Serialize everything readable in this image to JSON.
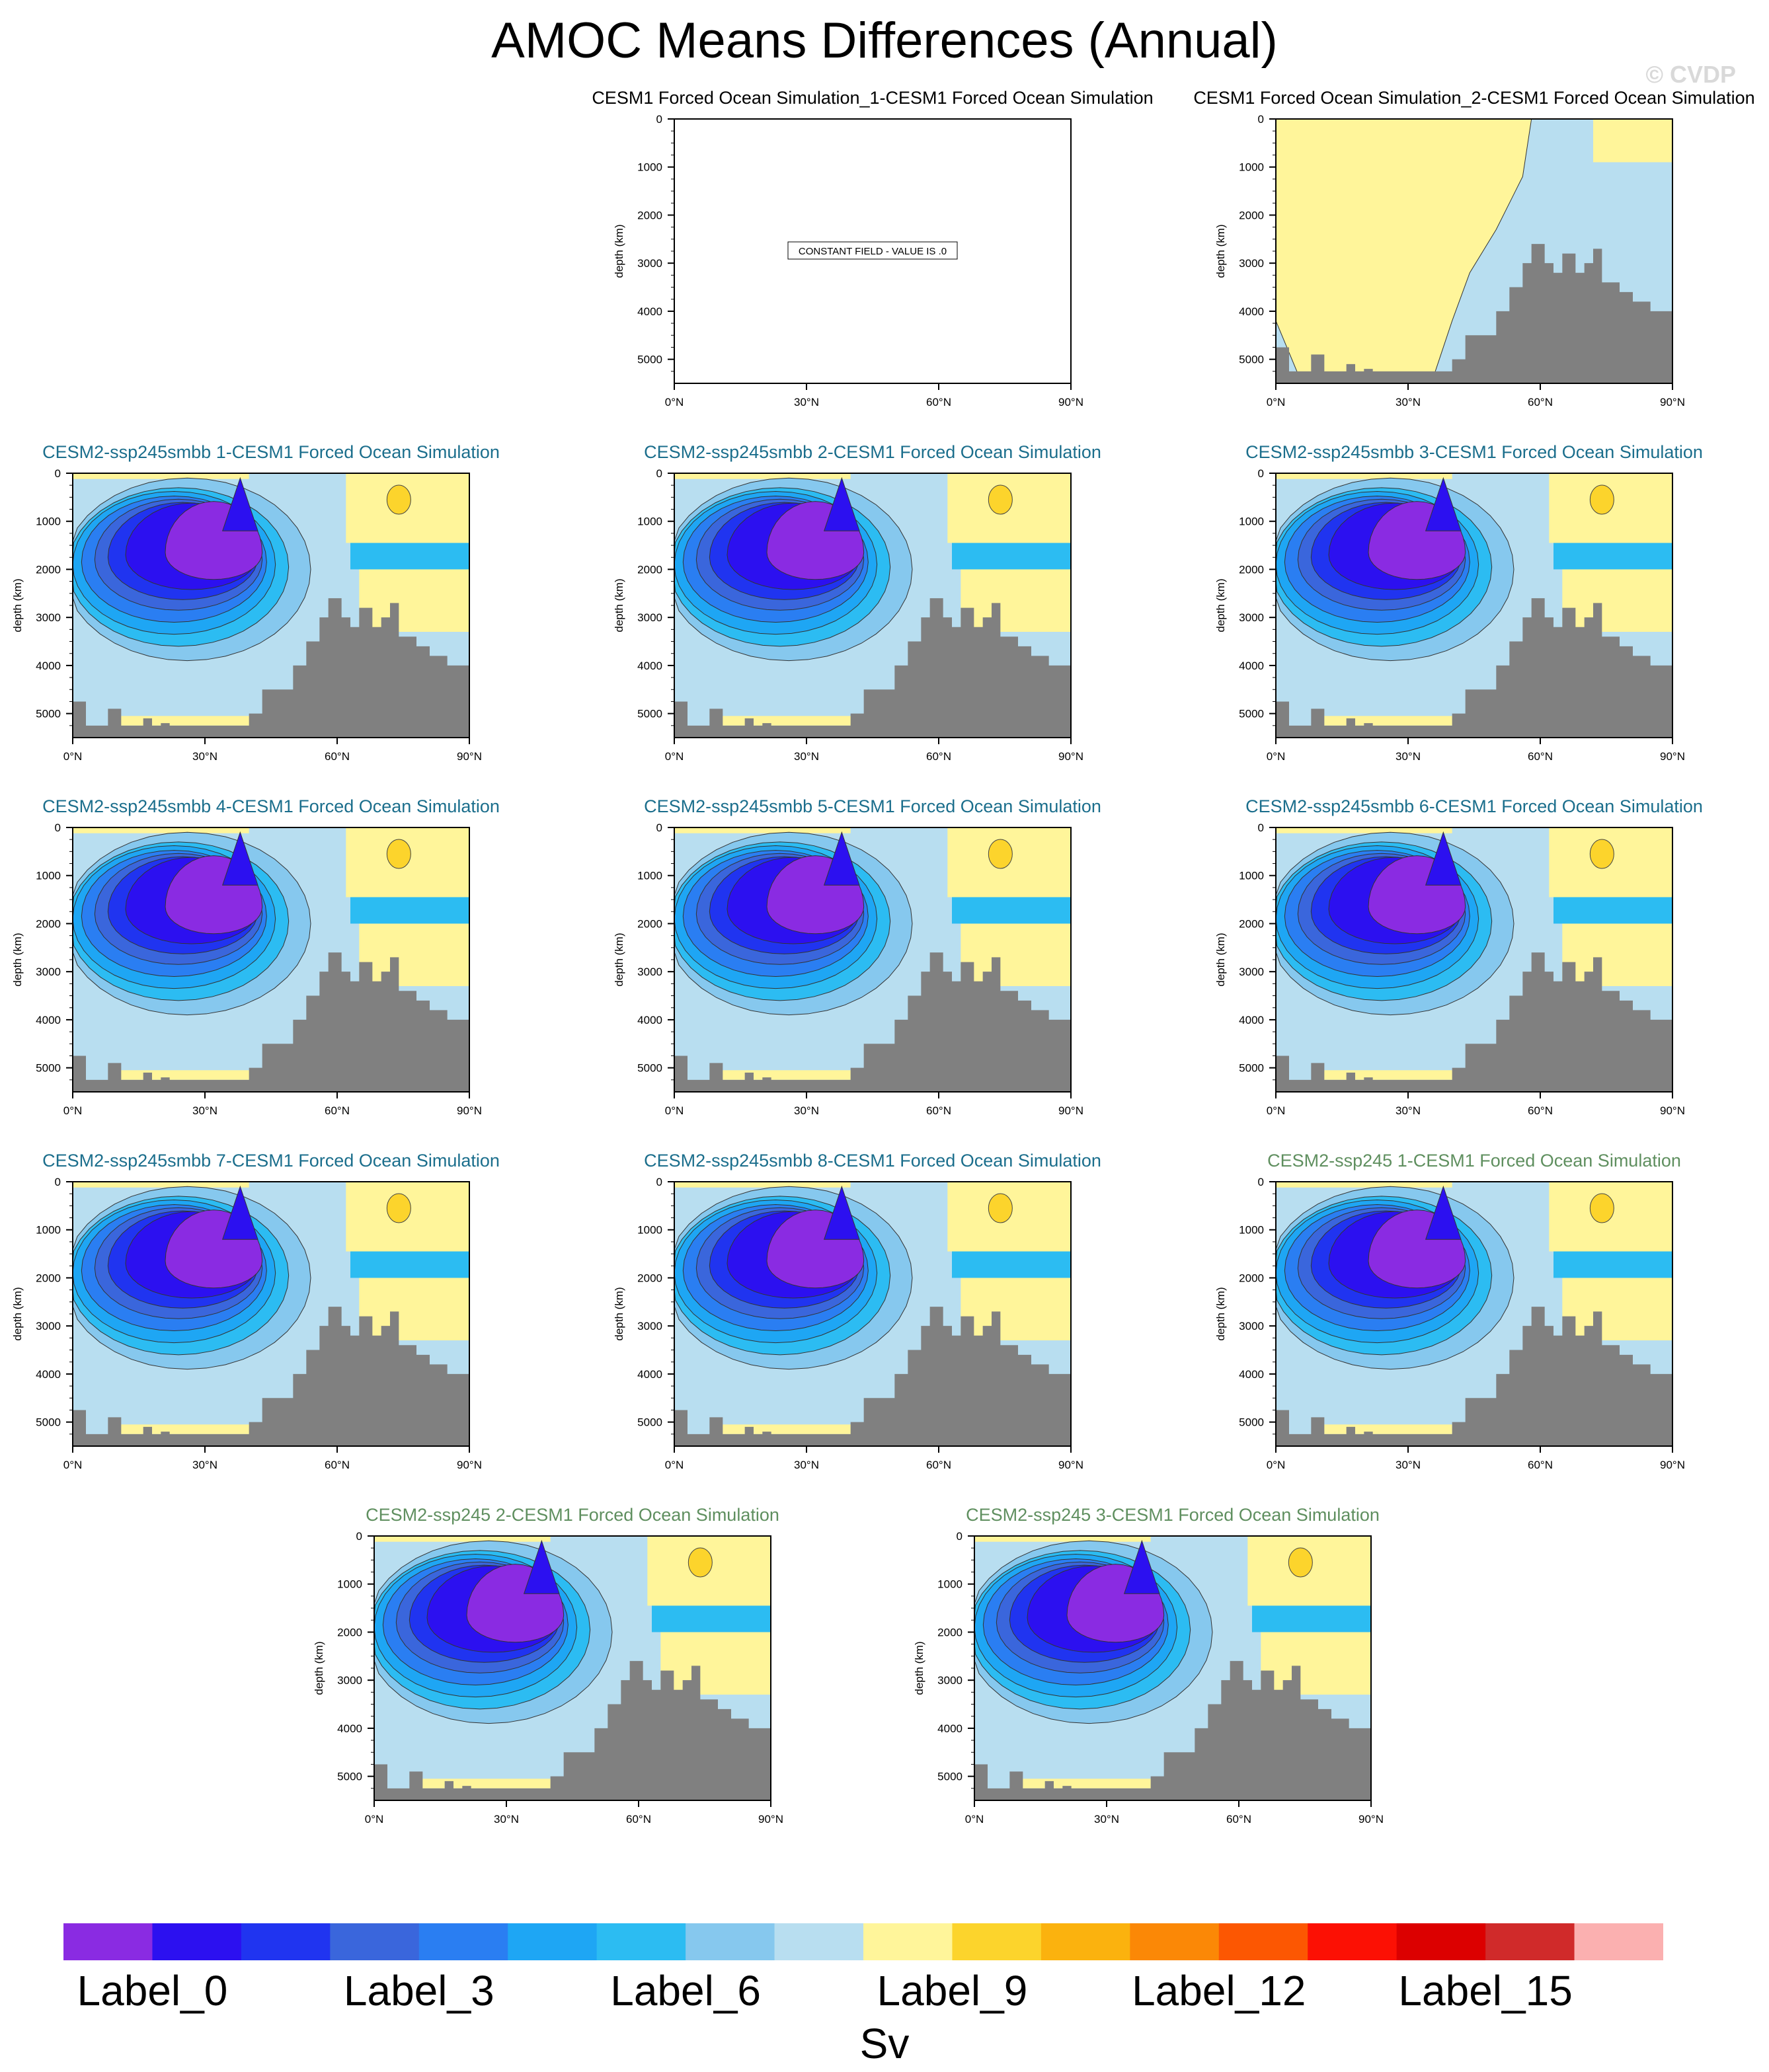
{
  "title": "AMOC Means Differences (Annual)",
  "watermark": "© CVDP",
  "colors": {
    "land": "#808080",
    "titles_cesm1": "#000000",
    "titles_smbb": "#1b6e8c",
    "titles_ssp245": "#5f8f5f"
  },
  "chart_data": [
    {
      "type": "heatmap",
      "title": "CESM1 Forced Ocean Simulation_1-CESM1 Forced Ocean Simulation",
      "title_color": "#000000",
      "ylabel": "depth (km)",
      "xticks": [
        "0°N",
        "30°N",
        "60°N",
        "90°N"
      ],
      "yticks": [
        "0",
        "1000",
        "2000",
        "3000",
        "4000",
        "5000"
      ],
      "xlim": [
        0,
        90
      ],
      "ylim": [
        5500,
        0
      ],
      "note": "CONSTANT FIELD - VALUE IS .0",
      "field": "empty"
    },
    {
      "type": "heatmap",
      "title": "CESM1 Forced Ocean Simulation_2-CESM1 Forced Ocean Simulation",
      "title_color": "#000000",
      "ylabel": "depth (km)",
      "xticks": [
        "0°N",
        "30°N",
        "60°N",
        "90°N"
      ],
      "yticks": [
        "0",
        "1000",
        "2000",
        "3000",
        "4000",
        "5000"
      ],
      "xlim": [
        0,
        90
      ],
      "ylim": [
        5500,
        0
      ],
      "field": "small"
    },
    {
      "type": "heatmap",
      "title": "CESM2-ssp245smbb 1-CESM1 Forced Ocean Simulation",
      "title_color": "#1b6e8c",
      "ylabel": "depth (km)",
      "xticks": [
        "0°N",
        "30°N",
        "60°N",
        "90°N"
      ],
      "yticks": [
        "0",
        "1000",
        "2000",
        "3000",
        "4000",
        "5000"
      ],
      "xlim": [
        0,
        90
      ],
      "ylim": [
        5500,
        0
      ],
      "field": "amoc"
    },
    {
      "type": "heatmap",
      "title": "CESM2-ssp245smbb 2-CESM1 Forced Ocean Simulation",
      "title_color": "#1b6e8c",
      "ylabel": "depth (km)",
      "xticks": [
        "0°N",
        "30°N",
        "60°N",
        "90°N"
      ],
      "yticks": [
        "0",
        "1000",
        "2000",
        "3000",
        "4000",
        "5000"
      ],
      "xlim": [
        0,
        90
      ],
      "ylim": [
        5500,
        0
      ],
      "field": "amoc"
    },
    {
      "type": "heatmap",
      "title": "CESM2-ssp245smbb 3-CESM1 Forced Ocean Simulation",
      "title_color": "#1b6e8c",
      "ylabel": "depth (km)",
      "xticks": [
        "0°N",
        "30°N",
        "60°N",
        "90°N"
      ],
      "yticks": [
        "0",
        "1000",
        "2000",
        "3000",
        "4000",
        "5000"
      ],
      "xlim": [
        0,
        90
      ],
      "ylim": [
        5500,
        0
      ],
      "field": "amoc"
    },
    {
      "type": "heatmap",
      "title": "CESM2-ssp245smbb 4-CESM1 Forced Ocean Simulation",
      "title_color": "#1b6e8c",
      "ylabel": "depth (km)",
      "xticks": [
        "0°N",
        "30°N",
        "60°N",
        "90°N"
      ],
      "yticks": [
        "0",
        "1000",
        "2000",
        "3000",
        "4000",
        "5000"
      ],
      "xlim": [
        0,
        90
      ],
      "ylim": [
        5500,
        0
      ],
      "field": "amoc"
    },
    {
      "type": "heatmap",
      "title": "CESM2-ssp245smbb 5-CESM1 Forced Ocean Simulation",
      "title_color": "#1b6e8c",
      "ylabel": "depth (km)",
      "xticks": [
        "0°N",
        "30°N",
        "60°N",
        "90°N"
      ],
      "yticks": [
        "0",
        "1000",
        "2000",
        "3000",
        "4000",
        "5000"
      ],
      "xlim": [
        0,
        90
      ],
      "ylim": [
        5500,
        0
      ],
      "field": "amoc"
    },
    {
      "type": "heatmap",
      "title": "CESM2-ssp245smbb 6-CESM1 Forced Ocean Simulation",
      "title_color": "#1b6e8c",
      "ylabel": "depth (km)",
      "xticks": [
        "0°N",
        "30°N",
        "60°N",
        "90°N"
      ],
      "yticks": [
        "0",
        "1000",
        "2000",
        "3000",
        "4000",
        "5000"
      ],
      "xlim": [
        0,
        90
      ],
      "ylim": [
        5500,
        0
      ],
      "field": "amoc"
    },
    {
      "type": "heatmap",
      "title": "CESM2-ssp245smbb 7-CESM1 Forced Ocean Simulation",
      "title_color": "#1b6e8c",
      "ylabel": "depth (km)",
      "xticks": [
        "0°N",
        "30°N",
        "60°N",
        "90°N"
      ],
      "yticks": [
        "0",
        "1000",
        "2000",
        "3000",
        "4000",
        "5000"
      ],
      "xlim": [
        0,
        90
      ],
      "ylim": [
        5500,
        0
      ],
      "field": "amoc"
    },
    {
      "type": "heatmap",
      "title": "CESM2-ssp245smbb 8-CESM1 Forced Ocean Simulation",
      "title_color": "#1b6e8c",
      "ylabel": "depth (km)",
      "xticks": [
        "0°N",
        "30°N",
        "60°N",
        "90°N"
      ],
      "yticks": [
        "0",
        "1000",
        "2000",
        "3000",
        "4000",
        "5000"
      ],
      "xlim": [
        0,
        90
      ],
      "ylim": [
        5500,
        0
      ],
      "field": "amoc"
    },
    {
      "type": "heatmap",
      "title": "CESM2-ssp245 1-CESM1 Forced Ocean Simulation",
      "title_color": "#5f8f5f",
      "ylabel": "depth (km)",
      "xticks": [
        "0°N",
        "30°N",
        "60°N",
        "90°N"
      ],
      "yticks": [
        "0",
        "1000",
        "2000",
        "3000",
        "4000",
        "5000"
      ],
      "xlim": [
        0,
        90
      ],
      "ylim": [
        5500,
        0
      ],
      "field": "amoc"
    },
    {
      "type": "heatmap",
      "title": "CESM2-ssp245 2-CESM1 Forced Ocean Simulation",
      "title_color": "#5f8f5f",
      "ylabel": "depth (km)",
      "xticks": [
        "0°N",
        "30°N",
        "60°N",
        "90°N"
      ],
      "yticks": [
        "0",
        "1000",
        "2000",
        "3000",
        "4000",
        "5000"
      ],
      "xlim": [
        0,
        90
      ],
      "ylim": [
        5500,
        0
      ],
      "field": "amoc"
    },
    {
      "type": "heatmap",
      "title": "CESM2-ssp245 3-CESM1 Forced Ocean Simulation",
      "title_color": "#5f8f5f",
      "ylabel": "depth (km)",
      "xticks": [
        "0°N",
        "30°N",
        "60°N",
        "90°N"
      ],
      "yticks": [
        "0",
        "1000",
        "2000",
        "3000",
        "4000",
        "5000"
      ],
      "xlim": [
        0,
        90
      ],
      "ylim": [
        5500,
        0
      ],
      "field": "amoc"
    }
  ],
  "colorbar": {
    "colors": [
      "#8a2be2",
      "#2c10f0",
      "#2034f0",
      "#3a66dc",
      "#2a7ef2",
      "#1ea6f4",
      "#2cbcf2",
      "#86c8ee",
      "#b8def0",
      "#fff59a",
      "#fcd42c",
      "#fbb20e",
      "#fb8806",
      "#fc5702",
      "#fc1004",
      "#dc0000",
      "#d02a2a",
      "#fbb0b0"
    ],
    "labels": [
      {
        "index": 0,
        "text": "Label_0"
      },
      {
        "index": 3,
        "text": "Label_3"
      },
      {
        "index": 6,
        "text": "Label_6"
      },
      {
        "index": 9,
        "text": "Label_9"
      },
      {
        "index": 12,
        "text": "Label_12"
      },
      {
        "index": 15,
        "text": "Label_15"
      }
    ],
    "units": "Sv"
  }
}
